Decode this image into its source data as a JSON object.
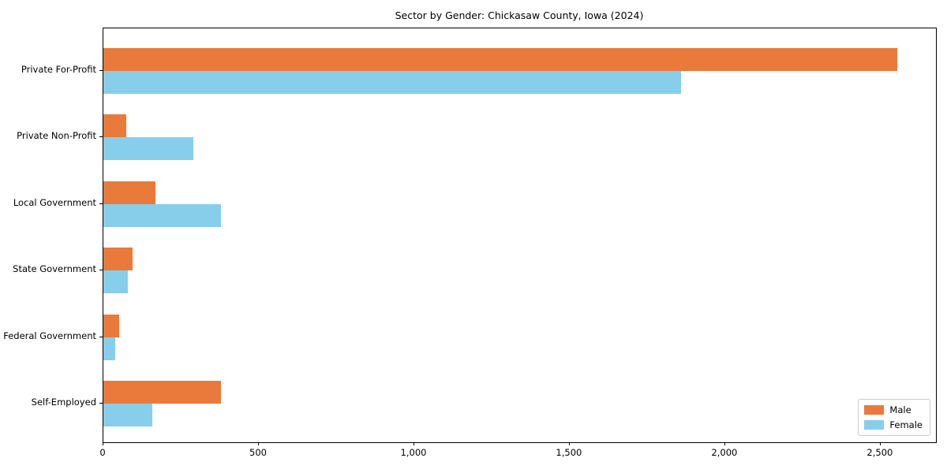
{
  "title": "Sector by Gender: Chickasaw County, Iowa (2024)",
  "chart_data": {
    "type": "bar",
    "orientation": "horizontal",
    "title": "Sector by Gender: Chickasaw County, Iowa (2024)",
    "categories": [
      "Private For-Profit",
      "Private Non-Profit",
      "Local Government",
      "State Government",
      "Federal Government",
      "Self-Employed"
    ],
    "series": [
      {
        "name": "Male",
        "color": "#e97a3c",
        "values": [
          2553,
          74,
          168,
          94,
          51,
          378
        ]
      },
      {
        "name": "Female",
        "color": "#87ceeb",
        "values": [
          1858,
          289,
          378,
          79,
          37,
          157
        ]
      }
    ],
    "xlabel": "",
    "ylabel": "",
    "xlim": [
      0,
      2678
    ],
    "x_ticks": [
      0,
      500,
      1000,
      1500,
      2000,
      2500
    ],
    "x_tick_labels": [
      "0",
      "500",
      "1,000",
      "1,500",
      "2,000",
      "2,500"
    ],
    "grid": false,
    "legend_position": "lower right"
  },
  "legend": {
    "items": [
      {
        "label": "Male",
        "color": "#e97a3c"
      },
      {
        "label": "Female",
        "color": "#87ceeb"
      }
    ]
  }
}
